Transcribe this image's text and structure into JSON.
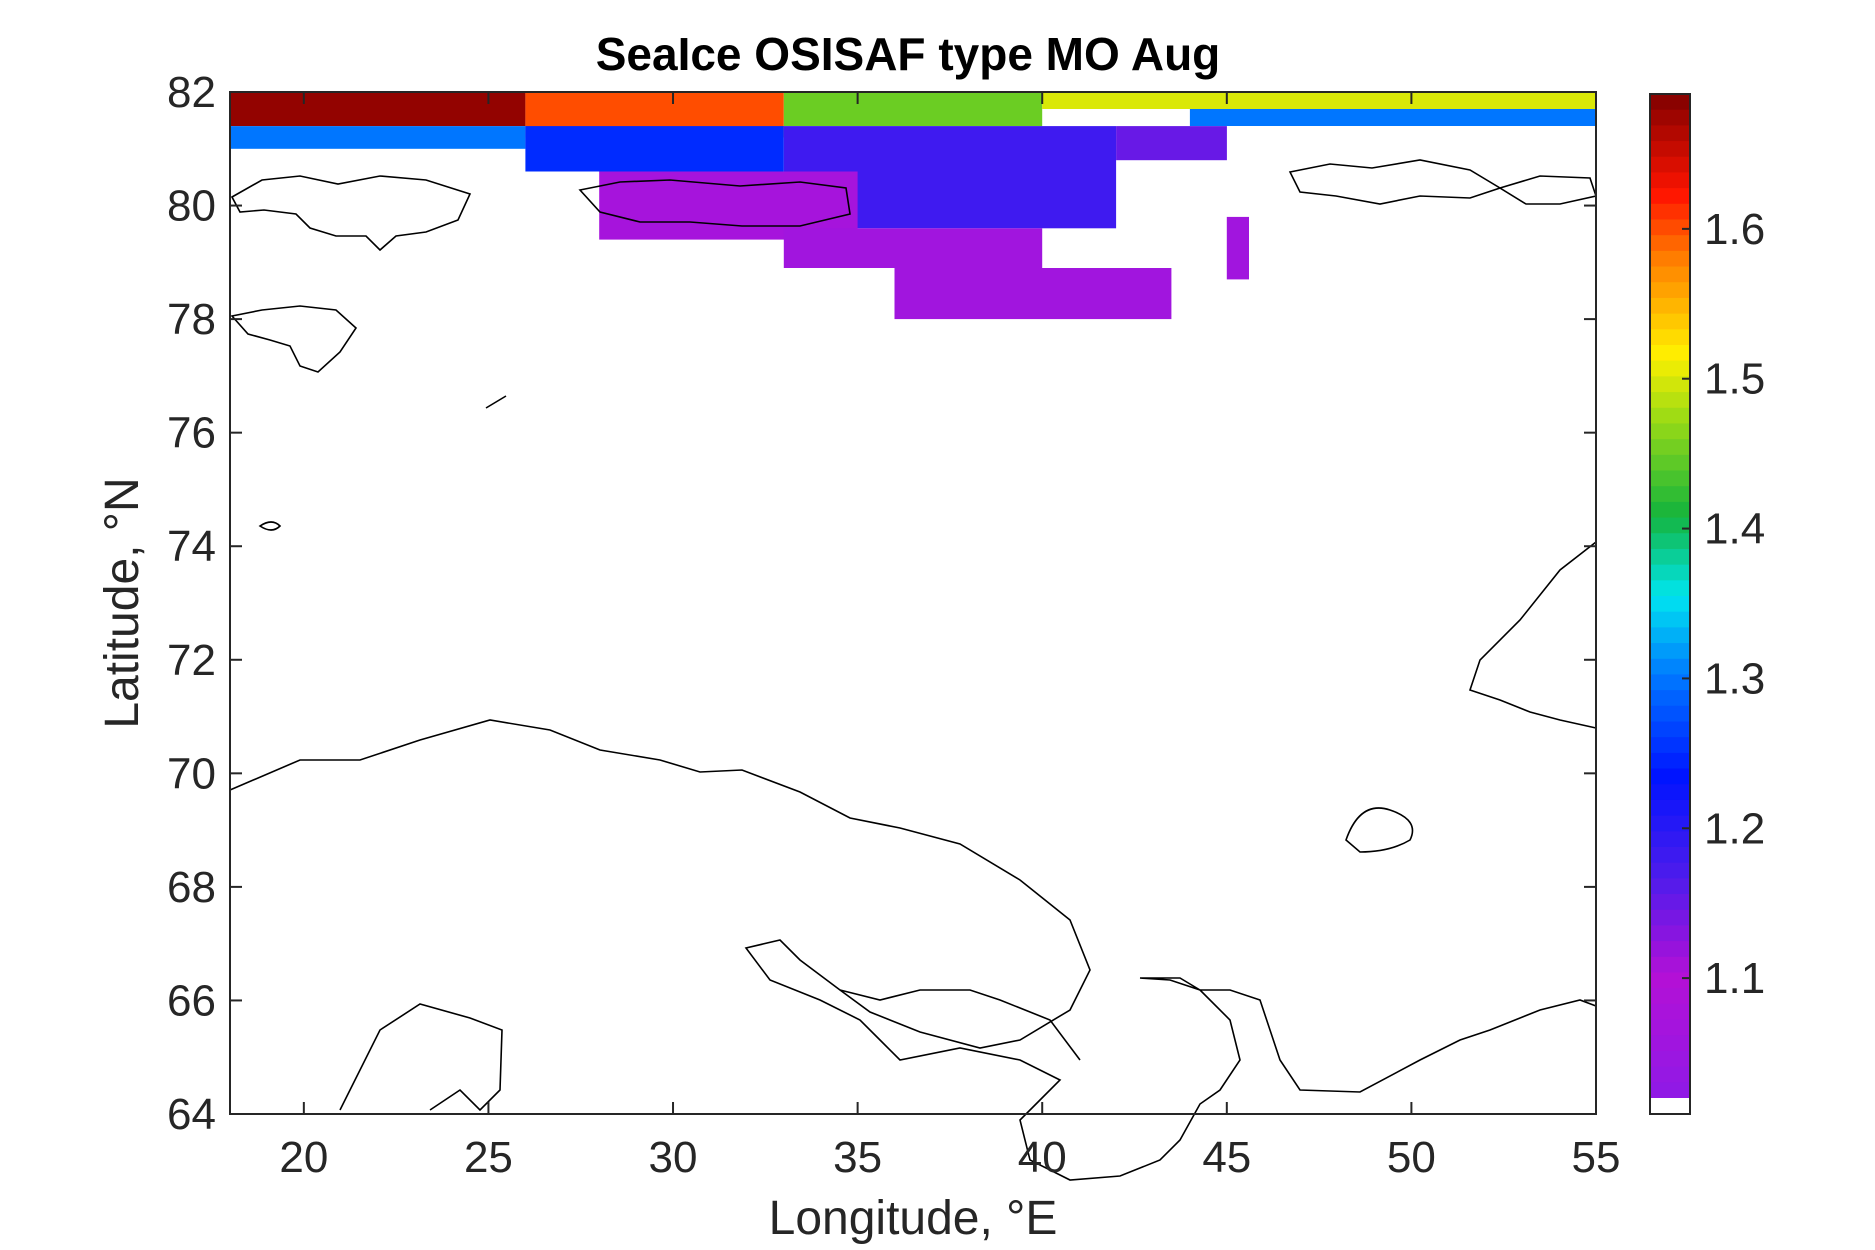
{
  "figure": {
    "title": "SeaIce OSISAF type MO Aug",
    "xlabel": "Longitude, °E",
    "ylabel": "Latitude, °N"
  },
  "chart_data": {
    "type": "heatmap",
    "title": "SeaIce OSISAF type MO Aug",
    "xlabel": "Longitude, °E",
    "ylabel": "Latitude, °N",
    "xlim": [
      18,
      55
    ],
    "ylim": [
      64,
      82
    ],
    "xticks": [
      20,
      25,
      30,
      35,
      40,
      45,
      50,
      55
    ],
    "xtick_labels": [
      "20",
      "25",
      "30",
      "35",
      "40",
      "45",
      "50",
      "55"
    ],
    "yticks": [
      64,
      66,
      68,
      70,
      72,
      74,
      76,
      78,
      80,
      82
    ],
    "ytick_labels": [
      "64",
      "66",
      "68",
      "70",
      "72",
      "74",
      "76",
      "78",
      "80",
      "82"
    ],
    "grid": false,
    "colorbar": {
      "range": [
        1.02,
        1.69
      ],
      "ticks": [
        1.1,
        1.2,
        1.3,
        1.4,
        1.5,
        1.6
      ],
      "tick_labels": [
        "1.1",
        "1.2",
        "1.3",
        "1.4",
        "1.5",
        "1.6"
      ],
      "colormap": "jet-like",
      "nan_color": "#ffffff"
    },
    "field_bands": [
      {
        "lat_top": 82.0,
        "lat_bottom": 81.4,
        "lon_from": 18,
        "lon_to": 26,
        "value": 1.68
      },
      {
        "lat_top": 82.0,
        "lat_bottom": 81.2,
        "lon_from": 26,
        "lon_to": 33,
        "value": 1.6
      },
      {
        "lat_top": 82.0,
        "lat_bottom": 81.4,
        "lon_from": 33,
        "lon_to": 40,
        "value": 1.45
      },
      {
        "lat_top": 82.0,
        "lat_bottom": 81.7,
        "lon_from": 40,
        "lon_to": 55,
        "value": 1.5
      },
      {
        "lat_top": 81.7,
        "lat_bottom": 81.4,
        "lon_from": 44,
        "lon_to": 55,
        "value": 1.3
      },
      {
        "lat_top": 81.4,
        "lat_bottom": 81.0,
        "lon_from": 18,
        "lon_to": 26,
        "value": 1.3
      },
      {
        "lat_top": 81.4,
        "lat_bottom": 80.6,
        "lon_from": 26,
        "lon_to": 33,
        "value": 1.25
      },
      {
        "lat_top": 81.4,
        "lat_bottom": 79.6,
        "lon_from": 33,
        "lon_to": 42,
        "value": 1.18
      },
      {
        "lat_top": 81.4,
        "lat_bottom": 80.8,
        "lon_from": 42,
        "lon_to": 45,
        "value": 1.15
      },
      {
        "lat_top": 80.6,
        "lat_bottom": 79.4,
        "lon_from": 28,
        "lon_to": 35,
        "value": 1.07
      },
      {
        "lat_top": 79.6,
        "lat_bottom": 78.9,
        "lon_from": 33,
        "lon_to": 40,
        "value": 1.06
      },
      {
        "lat_top": 78.9,
        "lat_bottom": 78.0,
        "lon_from": 36,
        "lon_to": 43.5,
        "value": 1.06
      },
      {
        "lat_top": 79.8,
        "lat_bottom": 78.7,
        "lon_from": 45,
        "lon_to": 45.6,
        "value": 1.06
      }
    ]
  }
}
